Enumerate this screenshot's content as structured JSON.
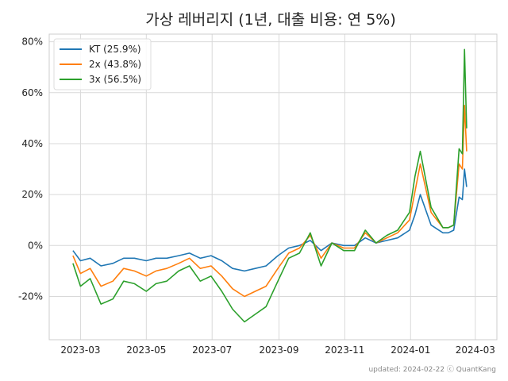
{
  "chart_data": {
    "type": "line",
    "title": "가상 레버리지 (1년, 대출 비용: 연 5%)",
    "xlabel": "",
    "ylabel": "",
    "x_ticks": [
      "2023-03",
      "2023-05",
      "2023-07",
      "2023-09",
      "2023-11",
      "2024-01",
      "2024-03"
    ],
    "y_ticks": [
      "-20%",
      "0%",
      "20%",
      "40%",
      "60%",
      "80%"
    ],
    "xlim": [
      "2023-01-31",
      "2024-03-21"
    ],
    "ylim": [
      -37,
      83
    ],
    "grid": true,
    "legend_position": "top-left",
    "footer": "updated: 2024-02-22 ⓒ QuantKang",
    "x": [
      "2023-02-22",
      "2023-03-01",
      "2023-03-10",
      "2023-03-20",
      "2023-03-31",
      "2023-04-10",
      "2023-04-20",
      "2023-05-01",
      "2023-05-10",
      "2023-05-20",
      "2023-05-31",
      "2023-06-10",
      "2023-06-20",
      "2023-06-30",
      "2023-07-10",
      "2023-07-20",
      "2023-07-31",
      "2023-08-10",
      "2023-08-20",
      "2023-08-31",
      "2023-09-10",
      "2023-09-20",
      "2023-09-30",
      "2023-10-10",
      "2023-10-20",
      "2023-10-31",
      "2023-11-10",
      "2023-11-20",
      "2023-11-30",
      "2023-12-10",
      "2023-12-20",
      "2023-12-31",
      "2024-01-05",
      "2024-01-10",
      "2024-01-20",
      "2024-01-31",
      "2024-02-05",
      "2024-02-10",
      "2024-02-15",
      "2024-02-18",
      "2024-02-20",
      "2024-02-22"
    ],
    "series": [
      {
        "name": "KT (25.9%)",
        "color": "#1f77b4",
        "values": [
          -2,
          -6,
          -5,
          -8,
          -7,
          -5,
          -5,
          -6,
          -5,
          -5,
          -4,
          -3,
          -5,
          -4,
          -6,
          -9,
          -10,
          -9,
          -8,
          -4,
          -1,
          0,
          2,
          -2,
          1,
          0,
          0,
          3,
          1,
          2,
          3,
          6,
          12,
          20,
          8,
          5,
          5,
          6,
          19,
          18,
          30,
          23
        ]
      },
      {
        "name": "2x (43.8%)",
        "color": "#ff7f0e",
        "values": [
          -4,
          -11,
          -9,
          -16,
          -14,
          -9,
          -10,
          -12,
          -10,
          -9,
          -7,
          -5,
          -9,
          -8,
          -12,
          -17,
          -20,
          -18,
          -16,
          -9,
          -3,
          -1,
          4,
          -5,
          1,
          -1,
          -1,
          5,
          1,
          3,
          5,
          10,
          21,
          32,
          13,
          7,
          7,
          8,
          32,
          30,
          55,
          37
        ]
      },
      {
        "name": "3x (56.5%)",
        "color": "#2ca02c",
        "values": [
          -7,
          -16,
          -13,
          -23,
          -21,
          -14,
          -15,
          -18,
          -15,
          -14,
          -10,
          -8,
          -14,
          -12,
          -18,
          -25,
          -30,
          -27,
          -24,
          -14,
          -5,
          -3,
          5,
          -8,
          1,
          -2,
          -2,
          6,
          1,
          4,
          6,
          13,
          27,
          37,
          15,
          7,
          7,
          8,
          38,
          36,
          77,
          46
        ]
      }
    ]
  }
}
